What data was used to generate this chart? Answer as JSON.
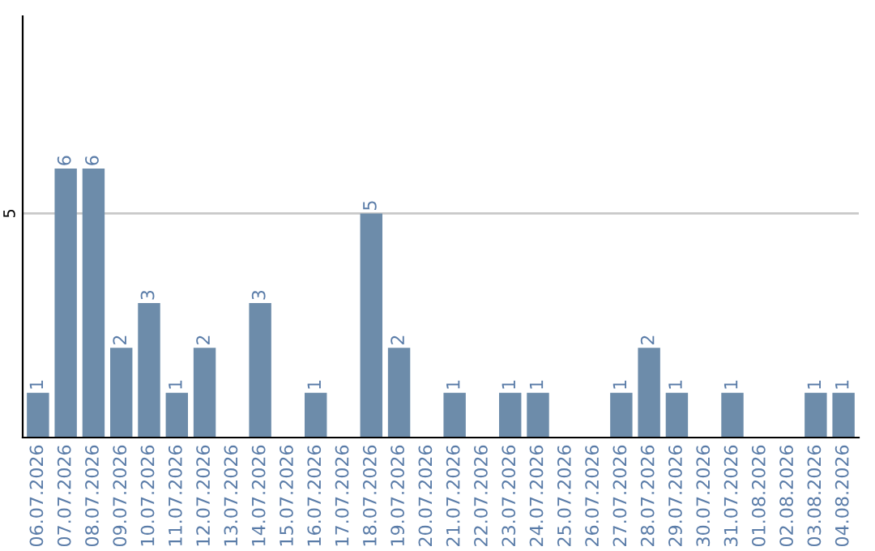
{
  "chart_data": {
    "type": "bar",
    "categories": [
      "06.07.2026",
      "07.07.2026",
      "08.07.2026",
      "09.07.2026",
      "10.07.2026",
      "11.07.2026",
      "12.07.2026",
      "13.07.2026",
      "14.07.2026",
      "15.07.2026",
      "16.07.2026",
      "17.07.2026",
      "18.07.2026",
      "19.07.2026",
      "20.07.2026",
      "21.07.2026",
      "22.07.2026",
      "23.07.2026",
      "24.07.2026",
      "25.07.2026",
      "26.07.2026",
      "27.07.2026",
      "28.07.2026",
      "29.07.2026",
      "30.07.2026",
      "31.07.2026",
      "01.08.2026",
      "02.08.2026",
      "03.08.2026",
      "04.08.2026"
    ],
    "values": [
      1,
      6,
      6,
      2,
      3,
      1,
      2,
      0,
      3,
      0,
      1,
      0,
      5,
      2,
      0,
      1,
      0,
      1,
      1,
      0,
      0,
      1,
      2,
      1,
      0,
      1,
      0,
      0,
      1,
      1
    ],
    "value_labels": [
      "1",
      "6",
      "6",
      "2",
      "3",
      "1",
      "2",
      null,
      "3",
      null,
      "1",
      null,
      "5",
      "2",
      null,
      "1",
      null,
      "1",
      "1",
      null,
      null,
      "1",
      "2",
      "1",
      null,
      "1",
      null,
      null,
      "1",
      "1"
    ],
    "color": "#6d8caa",
    "ylim": [
      0,
      9.4
    ],
    "yticks": [
      5
    ],
    "grid": "y"
  }
}
